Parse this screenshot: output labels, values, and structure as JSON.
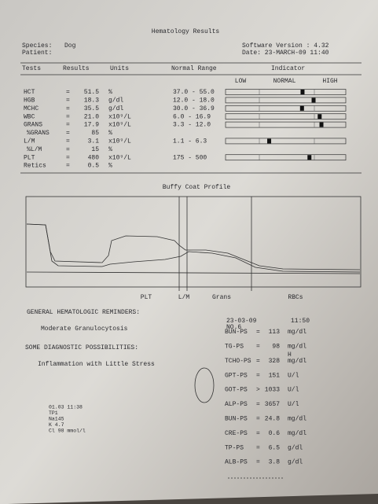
{
  "header": {
    "title": "Hematology Results",
    "species_label": "Species:",
    "species": "Dog",
    "patient_label": "Patient:",
    "software": "Software Version : 4.32",
    "date": "Date: 23-MARCH-09 11:40"
  },
  "table": {
    "columns": [
      "Tests",
      "Results",
      "Units",
      "Normal Range",
      "Indicator"
    ],
    "indicator_labels": [
      "LOW",
      "NORMAL",
      "HIGH"
    ],
    "rows": [
      {
        "test": "HCT",
        "result": "51.5",
        "unit": "%",
        "range": "37.0 - 55.0"
      },
      {
        "test": "HGB",
        "result": "18.3",
        "unit": "g/dl",
        "range": "12.0 - 18.0"
      },
      {
        "test": "MCHC",
        "result": "35.5",
        "unit": "g/dl",
        "range": "30.0 - 36.9"
      },
      {
        "test": "WBC",
        "result": "21.0",
        "unit": "x10⁹/L",
        "range": "6.0 - 16.9"
      },
      {
        "test": "GRANS",
        "result": "17.9",
        "unit": "x10⁹/L",
        "range": "3.3 - 12.0"
      },
      {
        "test": "%GRANS",
        "result": "85",
        "unit": "%",
        "range": null
      },
      {
        "test": "L/M",
        "result": "3.1",
        "unit": "x10⁹/L",
        "range": "1.1 - 6.3"
      },
      {
        "test": "%L/M",
        "result": "15",
        "unit": "%",
        "range": null
      },
      {
        "test": "PLT",
        "result": "480",
        "unit": "x10⁹/L",
        "range": "175 - 500"
      },
      {
        "test": "Retics",
        "result": "0.5",
        "unit": "%",
        "range": null
      }
    ]
  },
  "profile": {
    "title": "Buffy Coat Profile",
    "labels": [
      "PLT",
      "L/M",
      "Grans",
      "RBCs"
    ]
  },
  "reminders": {
    "heading": "GENERAL HEMATOLOGIC REMINDERS:",
    "text": "Moderate Granulocytosis"
  },
  "diagnostics": {
    "heading": "SOME DIAGNOSTIC POSSIBILITIES:",
    "text": "Inflammation with Little Stress"
  },
  "chemistry": {
    "date": "23-03-09",
    "time": "11:50",
    "number": "NO.6",
    "rows": [
      {
        "test": "BUN-PS",
        "sign": "=",
        "value": "113",
        "unit": "mg/dl",
        "flag": null
      },
      {
        "test": "TG-PS",
        "sign": "=",
        "value": "98",
        "unit": "mg/dl",
        "flag": null
      },
      {
        "test": "TCHO-PS",
        "sign": "=",
        "value": "328",
        "unit": "mg/dl",
        "flag": "H"
      },
      {
        "test": "GPT-PS",
        "sign": "=",
        "value": "151",
        "unit": "U/l",
        "flag": null
      },
      {
        "test": "GOT-PS",
        "sign": ">",
        "value": "1033",
        "unit": "U/l",
        "flag": null
      },
      {
        "test": "ALP-PS",
        "sign": "=",
        "value": "3657",
        "unit": "U/l",
        "flag": null
      },
      {
        "test": "BUN-PS",
        "sign": "=",
        "value": "24.8",
        "unit": "mg/dl",
        "flag": null
      },
      {
        "test": "CRE-PS",
        "sign": "=",
        "value": "0.6",
        "unit": "mg/dl",
        "flag": null
      },
      {
        "test": "TP-PS",
        "sign": "=",
        "value": "6.5",
        "unit": "g/dl",
        "flag": null
      },
      {
        "test": "ALB-PS",
        "sign": "=",
        "value": "3.8",
        "unit": "g/dl",
        "flag": null
      }
    ]
  },
  "electrolytes": {
    "lines": [
      "01.03 11:38",
      "TP1",
      "Na145",
      "K 4.7",
      "Cl 98 mmol/l"
    ]
  }
}
